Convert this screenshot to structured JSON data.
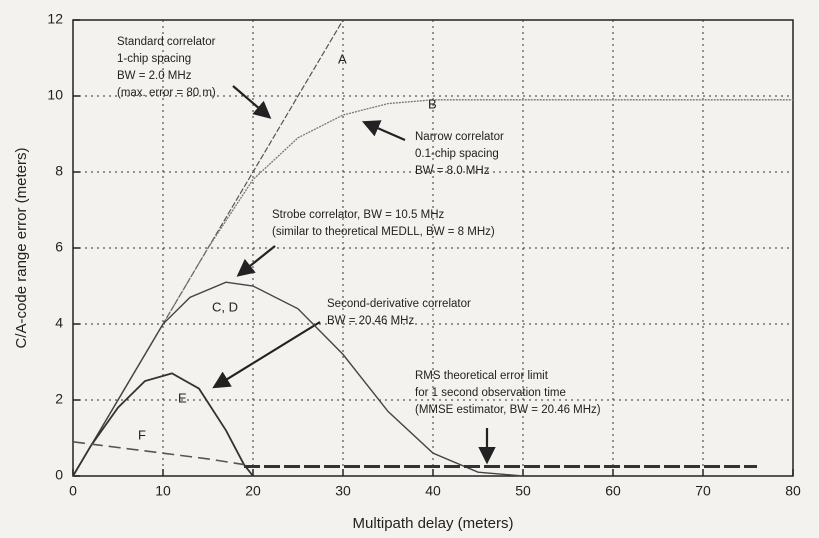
{
  "chart_data": {
    "type": "line",
    "x_label": "Multipath delay (meters)",
    "y_label": "C/A-code range error (meters)",
    "xlim": [
      0,
      80
    ],
    "xticks": [
      0,
      10,
      20,
      30,
      40,
      50,
      60,
      70,
      80
    ],
    "ylim": [
      0,
      12
    ],
    "yticks": [
      0,
      2,
      4,
      6,
      8,
      10,
      12
    ],
    "grid": true,
    "series": [
      {
        "name": "A",
        "color": "#555555",
        "x": [
          0,
          30
        ],
        "values": [
          0,
          12
        ]
      },
      {
        "name": "B",
        "color": "#777777",
        "x": [
          0,
          5,
          10,
          15,
          20,
          25,
          30,
          35,
          40,
          50,
          60,
          70,
          80
        ],
        "values": [
          0,
          2,
          4,
          6,
          7.8,
          8.9,
          9.5,
          9.8,
          9.9,
          9.9,
          9.9,
          9.9,
          9.9
        ]
      },
      {
        "name": "C, D",
        "color": "#444444",
        "x": [
          0,
          5,
          10,
          13,
          17,
          20,
          25,
          30,
          35,
          40,
          45,
          50
        ],
        "values": [
          0,
          2,
          4,
          4.7,
          5.1,
          5,
          4.4,
          3.2,
          1.7,
          0.6,
          0.1,
          0
        ]
      },
      {
        "name": "E",
        "color": "#333333",
        "x": [
          0,
          2,
          5,
          8,
          11,
          14,
          17,
          19,
          20
        ],
        "values": [
          0,
          0.8,
          1.8,
          2.5,
          2.7,
          2.3,
          1.2,
          0.3,
          0
        ]
      },
      {
        "name": "F",
        "color": "#555555",
        "x": [
          0,
          5,
          10,
          15,
          19
        ],
        "values": [
          0.9,
          0.75,
          0.6,
          0.45,
          0.3
        ]
      },
      {
        "color": "#333333",
        "x": [
          19,
          76
        ],
        "values": [
          0.25,
          0.25
        ]
      }
    ],
    "annotations": [
      [
        "Standard correlator",
        "1-chip spacing",
        "BW = 2.0 MHz",
        "(max. error = 80 m)"
      ],
      [
        "Narrow correlator",
        "0.1-chip spacing",
        "BW = 8.0 MHz"
      ],
      [
        "Strobe correlator, BW = 10.5 MHz",
        "(similar to theoretical MEDLL, BW = 8 MHz)"
      ],
      [
        "Second-derivative correlator",
        "BW = 20.46 MHz"
      ],
      [
        "RMS theoretical error limit",
        "for 1 second observation time",
        "(MMSE estimator, BW = 20.46 MHz)"
      ]
    ]
  }
}
